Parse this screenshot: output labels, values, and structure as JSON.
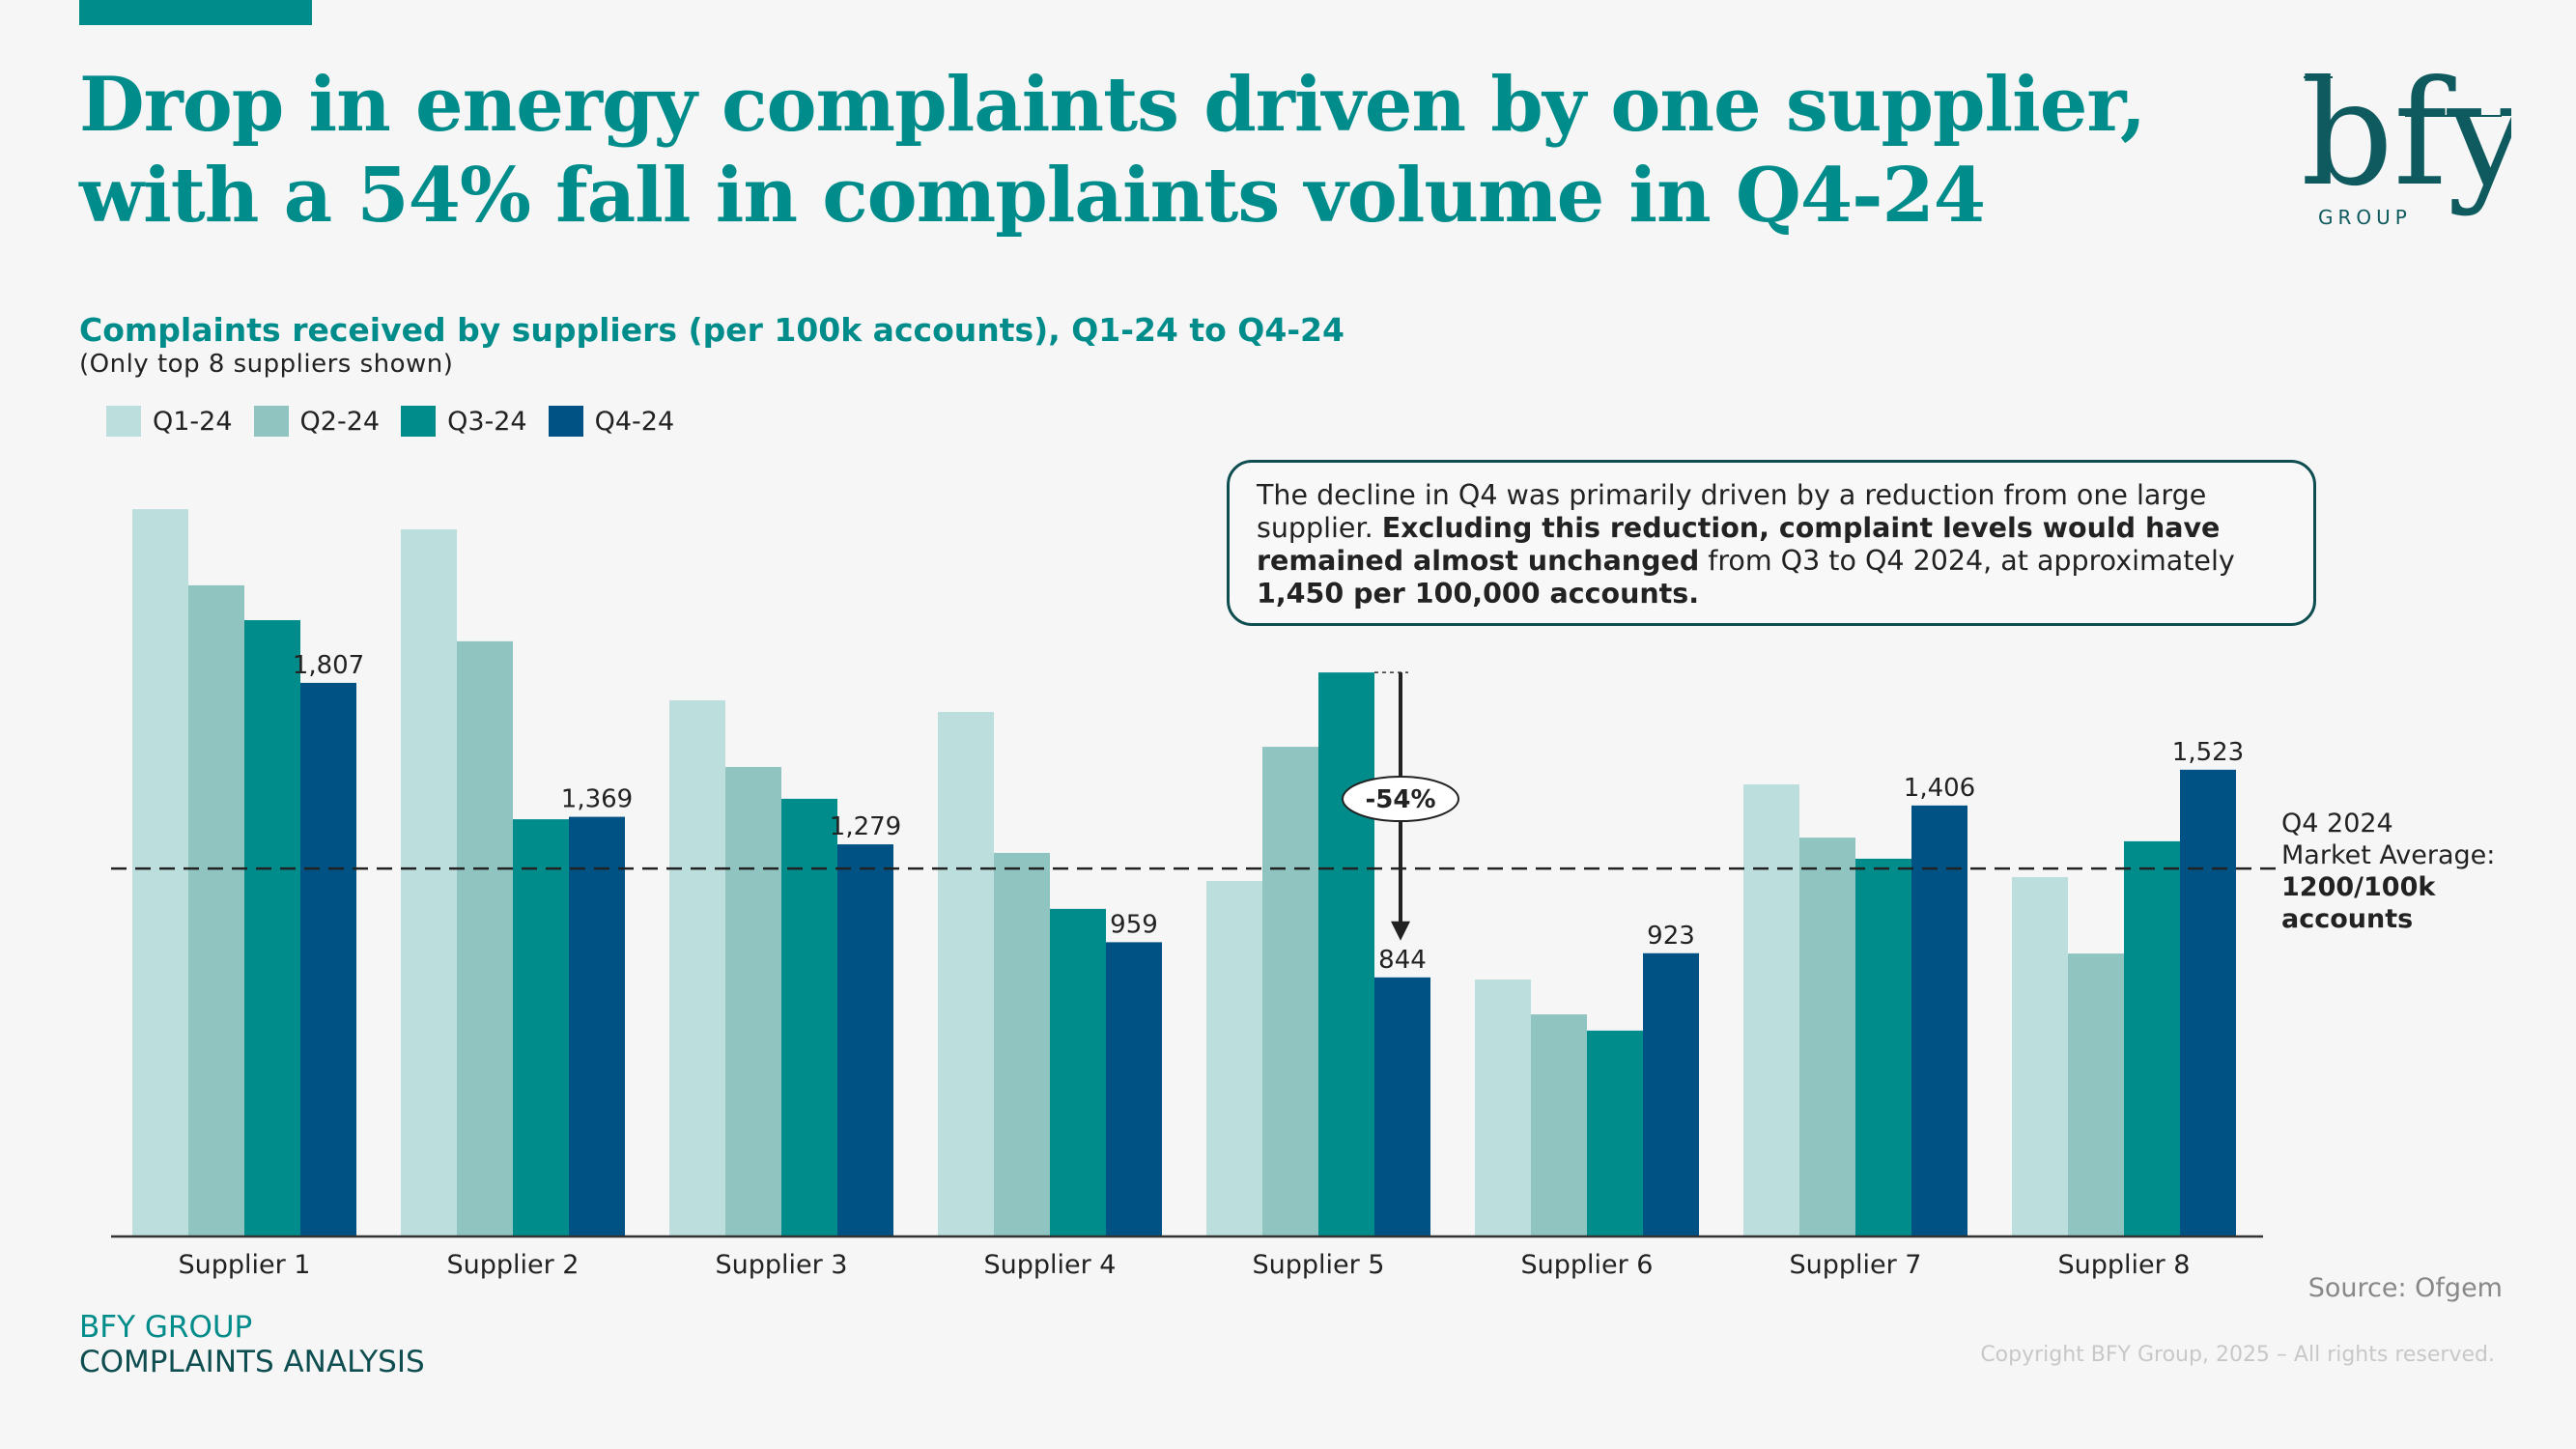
{
  "header": {
    "title_line1": "Drop in energy complaints driven by one supplier,",
    "title_line2": "with a 54% fall in complaints volume in Q4-24",
    "logo_text": "bfy",
    "logo_subtext": "GROUP"
  },
  "chart_header": {
    "subtitle": "Complaints received by suppliers (per 100k accounts), Q1-24 to Q4-24",
    "note": "(Only top 8 suppliers shown)"
  },
  "callout": {
    "part1": "The decline in Q4 was primarily driven by a reduction from one large supplier. ",
    "part2_bold": "Excluding this reduction, complaint levels would have remained almost unchanged",
    "part3": " from Q3 to Q4 2024, at approximately ",
    "part4_bold": "1,450 per 100,000 accounts."
  },
  "market_average": {
    "line1": "Q4 2024",
    "line2": "Market Average:",
    "line3_bold": "1200/100k",
    "line4_bold": "accounts"
  },
  "footer": {
    "brand": "BFY GROUP",
    "section": "COMPLAINTS ANALYSIS",
    "source": "Source: Ofgem",
    "copyright": "Copyright BFY Group, 2025 – All rights reserved."
  },
  "colors": {
    "Q1-24": "#bcdedd",
    "Q2-24": "#8fc4c1",
    "Q3-24": "#008c8a",
    "Q4-24": "#005285",
    "accent": "#008c8a",
    "dark_teal": "#0e4d50"
  },
  "chart_data": {
    "type": "bar",
    "title": "Complaints received by suppliers (per 100k accounts), Q1-24 to Q4-24",
    "subtitle": "(Only top 8 suppliers shown)",
    "xlabel": "",
    "ylabel": "",
    "ylim": [
      0,
      2400
    ],
    "grid": false,
    "legend_position": "top-left",
    "categories": [
      "Supplier 1",
      "Supplier 2",
      "Supplier 3",
      "Supplier 4",
      "Supplier 5",
      "Supplier 6",
      "Supplier 7",
      "Supplier 8"
    ],
    "series": [
      {
        "name": "Q1-24",
        "values": [
          2375,
          2309,
          1750,
          1712,
          1159,
          837,
          1475,
          1172
        ]
      },
      {
        "name": "Q2-24",
        "values": [
          2126,
          1943,
          1532,
          1251,
          1598,
          723,
          1301,
          922
        ]
      },
      {
        "name": "Q3-24",
        "values": [
          2012,
          1361,
          1428,
          1068,
          1841,
          670,
          1232,
          1289
        ]
      },
      {
        "name": "Q4-24",
        "values": [
          1807,
          1369,
          1279,
          959,
          844,
          923,
          1406,
          1523
        ]
      }
    ],
    "data_labels": {
      "series": "Q4-24",
      "labels": [
        "1,807",
        "1,369",
        "1,279",
        "959",
        "844",
        "923",
        "1,406",
        "1,523"
      ]
    },
    "reference_line": {
      "value": 1200,
      "label": "Q4 2024 Market Average: 1200/100k accounts",
      "style": "dashed"
    },
    "annotation": {
      "category": "Supplier 5",
      "from_series": "Q3-24",
      "to_series": "Q4-24",
      "text": "-54%"
    }
  }
}
